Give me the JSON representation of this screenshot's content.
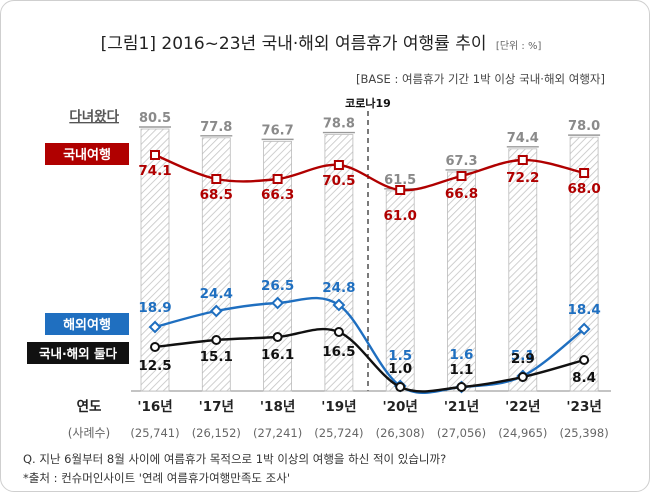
{
  "header": {
    "title": "[그림1] 2016~23년 국내·해외 여름휴가 여행률 추이",
    "unit": "[단위 : %]",
    "base": "[BASE : 여름휴가 기간 1박 이상 국내·해외 여행자]"
  },
  "labels": {
    "visited": "다녀왔다",
    "domestic": "국내여행",
    "overseas": "해외여행",
    "both": "국내·해외 둘다",
    "covid": "코로나19",
    "year_row": "연도",
    "n_row": "(사례수)"
  },
  "footer": {
    "question": "Q. 지난 6월부터 8월 사이에 여름휴가 목적으로 1박 이상의 여행을 하신 적이 있습니까?",
    "source": "*출처 : 컨슈머인사이트 '연례 여름휴가여행만족도 조사'"
  },
  "colors": {
    "domestic": "#b00000",
    "overseas": "#1f6fc0",
    "both": "#111111",
    "bar_hatch": "#bdbdbd",
    "title": "#222222"
  },
  "chart_data": {
    "type": "bar",
    "categories": [
      "'16년",
      "'17년",
      "'18년",
      "'19년",
      "'20년",
      "'21년",
      "'22년",
      "'23년"
    ],
    "sample_sizes": [
      "(25,741)",
      "(26,152)",
      "(27,241)",
      "(25,724)",
      "(26,308)",
      "(27,056)",
      "(24,965)",
      "(25,398)"
    ],
    "series": [
      {
        "name": "다녀왔다",
        "type": "bar",
        "values": [
          80.5,
          77.8,
          76.7,
          78.8,
          61.5,
          67.3,
          74.4,
          78.0
        ]
      },
      {
        "name": "국내여행",
        "type": "line",
        "values": [
          74.1,
          68.5,
          66.3,
          70.5,
          61.0,
          66.8,
          72.2,
          68.0
        ]
      },
      {
        "name": "해외여행",
        "type": "line",
        "values": [
          18.9,
          24.4,
          26.5,
          24.8,
          1.5,
          1.6,
          5.1,
          18.4
        ]
      },
      {
        "name": "국내·해외 둘다",
        "type": "line",
        "values": [
          12.5,
          15.1,
          16.1,
          16.5,
          1.0,
          1.1,
          2.9,
          8.4
        ]
      }
    ],
    "annotations": [
      "코로나19"
    ],
    "ylim": [
      0,
      100
    ],
    "grid": false
  }
}
